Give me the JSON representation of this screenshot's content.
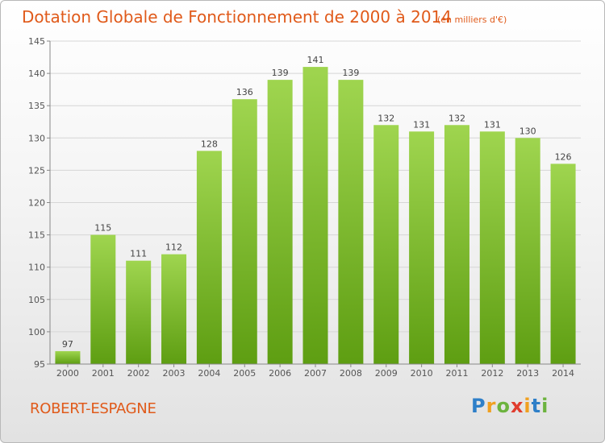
{
  "chart_data": {
    "type": "bar",
    "title": "Dotation Globale de Fonctionnement de 2000 à 2014",
    "unit": "(en milliers d'€)",
    "categories": [
      "2000",
      "2001",
      "2002",
      "2003",
      "2004",
      "2005",
      "2006",
      "2007",
      "2008",
      "2009",
      "2010",
      "2011",
      "2012",
      "2013",
      "2014"
    ],
    "values": [
      97,
      115,
      111,
      112,
      128,
      136,
      139,
      141,
      139,
      132,
      131,
      132,
      131,
      130,
      126
    ],
    "ylim": [
      95,
      145
    ],
    "yticks": [
      95,
      100,
      105,
      110,
      115,
      120,
      125,
      130,
      135,
      140,
      145
    ],
    "grid": true,
    "bar_color": "#7dbf2c"
  },
  "commune": "ROBERT-ESPAGNE",
  "logo": {
    "letters": [
      "P",
      "r",
      "o",
      "x",
      "i",
      "t",
      "i"
    ],
    "colors": [
      "#2e7fc8",
      "#f0a020",
      "#6cb33e",
      "#e03c2e",
      "#f0a020",
      "#2e7fc8",
      "#6cb33e"
    ]
  }
}
